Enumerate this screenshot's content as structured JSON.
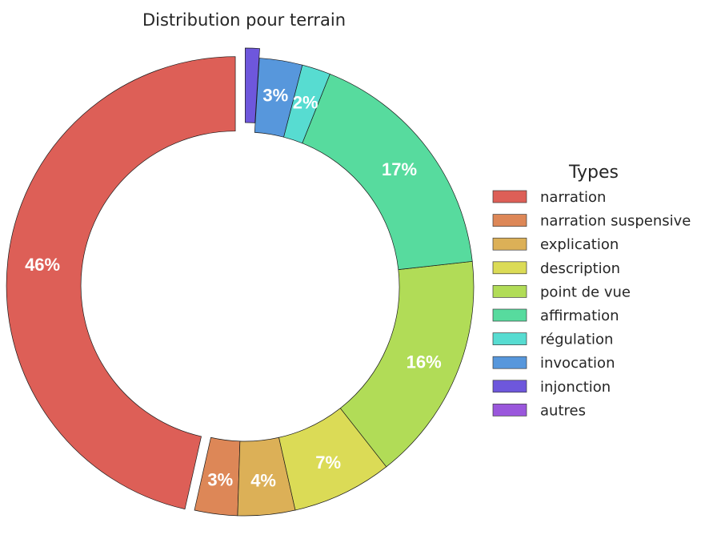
{
  "chart_data": {
    "type": "pie",
    "style": "donut",
    "title": "Distribution pour terrain",
    "legend": {
      "title": "Types",
      "placement": "right"
    },
    "start_angle": "top, counter-clockwise",
    "slices": [
      {
        "label": "narration",
        "value": 46,
        "display": "46%",
        "color": "#dd5f57",
        "exploded": true
      },
      {
        "label": "narration suspensive",
        "value": 3,
        "display": "3%",
        "color": "#dd8757"
      },
      {
        "label": "explication",
        "value": 4,
        "display": "4%",
        "color": "#dcb057"
      },
      {
        "label": "description",
        "value": 7,
        "display": "7%",
        "color": "#dbdb56"
      },
      {
        "label": "point de vue",
        "value": 16,
        "display": "16%",
        "color": "#b1dc57"
      },
      {
        "label": "affirmation",
        "value": 17,
        "display": "17%",
        "color": "#57db9e"
      },
      {
        "label": "régulation",
        "value": 2,
        "display": "2%",
        "color": "#57dcd1"
      },
      {
        "label": "invocation",
        "value": 3,
        "display": "3%",
        "color": "#5797dc"
      },
      {
        "label": "injonction",
        "value": 1,
        "display": "",
        "color": "#6e57dc",
        "exploded": true
      },
      {
        "label": "autres",
        "value": 0,
        "display": "",
        "color": "#9a57dc"
      }
    ]
  }
}
